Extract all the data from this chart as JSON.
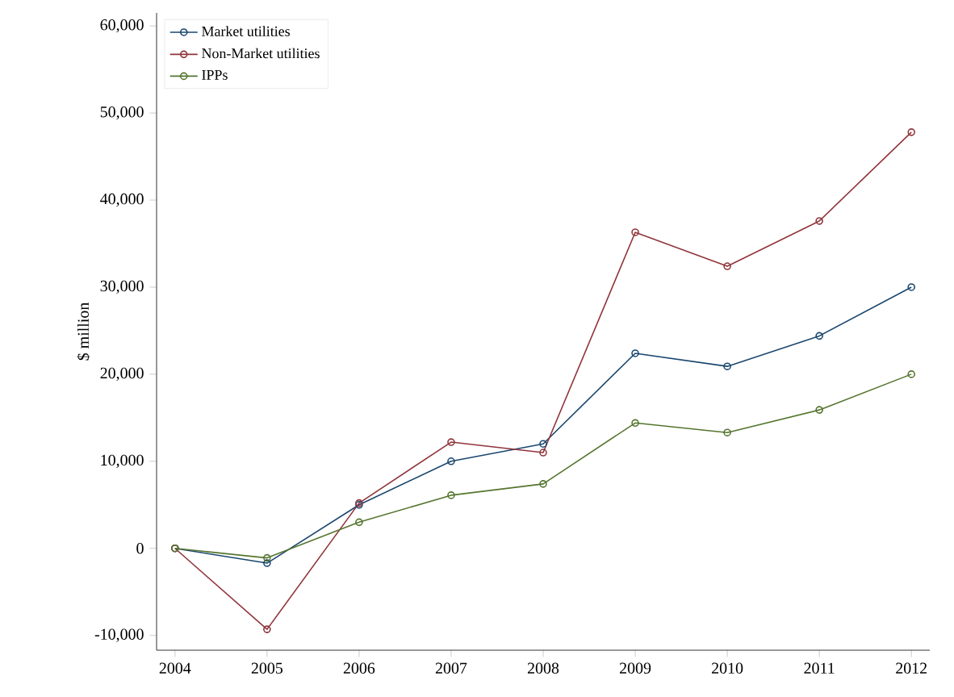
{
  "chart_data": {
    "type": "line",
    "ylabel": "$ million",
    "x": [
      2004,
      2005,
      2006,
      2007,
      2008,
      2009,
      2010,
      2011,
      2012
    ],
    "series": [
      {
        "name": "Market utilities",
        "color": "#1a476f",
        "values": [
          0,
          -1700,
          5000,
          10000,
          12000,
          22400,
          20900,
          24400,
          30000
        ]
      },
      {
        "name": "Non-Market utilities",
        "color": "#90353b",
        "values": [
          0,
          -9300,
          5200,
          12200,
          11000,
          36300,
          32400,
          37600,
          47800
        ]
      },
      {
        "name": "IPPs",
        "color": "#55752f",
        "values": [
          0,
          -1100,
          3000,
          6100,
          7400,
          14400,
          13300,
          15900,
          20000
        ]
      }
    ],
    "xlim": [
      2003.8,
      2012.2
    ],
    "xticks": [
      2004,
      2005,
      2006,
      2007,
      2008,
      2009,
      2010,
      2011,
      2012
    ],
    "ylim": [
      -11700,
      61500
    ],
    "yticks": [
      {
        "value": -10000,
        "label": "-10,000"
      },
      {
        "value": 0,
        "label": "0"
      },
      {
        "value": 10000,
        "label": "10,000"
      },
      {
        "value": 20000,
        "label": "20,000"
      },
      {
        "value": 30000,
        "label": "30,000"
      },
      {
        "value": 40000,
        "label": "40,000"
      },
      {
        "value": 50000,
        "label": "50,000"
      },
      {
        "value": 60000,
        "label": "60,000"
      }
    ],
    "grid": false,
    "legend": "top left",
    "marker": "circle",
    "line_style": "solid"
  }
}
